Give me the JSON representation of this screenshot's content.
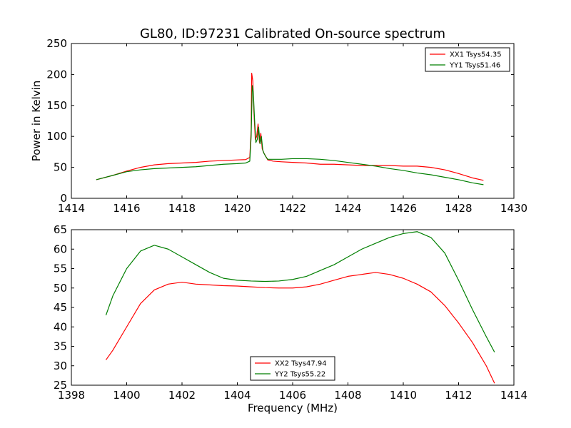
{
  "title": "GL80, ID:97231 Calibrated On-source spectrum",
  "colors": {
    "red": "#ff0000",
    "green": "#007f00"
  },
  "chart_data": [
    {
      "type": "line",
      "title": "GL80, ID:97231 Calibrated On-source spectrum",
      "xlabel": "",
      "ylabel": "Power in Kelvin",
      "xlim": [
        1414,
        1430
      ],
      "ylim": [
        0,
        250
      ],
      "xticks": [
        1414,
        1416,
        1418,
        1420,
        1422,
        1424,
        1426,
        1428,
        1430
      ],
      "yticks": [
        0,
        50,
        100,
        150,
        200,
        250
      ],
      "legend_position": "top-right",
      "grid": false,
      "series": [
        {
          "name": "XX1 Tsys54.35",
          "color": "#ff0000",
          "x": [
            1414.9,
            1415.5,
            1416.0,
            1416.5,
            1417.0,
            1417.5,
            1418.0,
            1418.5,
            1419.0,
            1419.5,
            1420.0,
            1420.3,
            1420.45,
            1420.5,
            1420.52,
            1420.56,
            1420.6,
            1420.65,
            1420.7,
            1420.75,
            1420.8,
            1420.85,
            1420.9,
            1420.95,
            1421.0,
            1421.1,
            1421.3,
            1421.6,
            1422.0,
            1422.5,
            1423.0,
            1423.5,
            1424.0,
            1424.5,
            1425.0,
            1425.5,
            1426.0,
            1426.5,
            1427.0,
            1427.5,
            1428.0,
            1428.5,
            1428.9
          ],
          "y": [
            30,
            37,
            44,
            50,
            54,
            56,
            57,
            58,
            60,
            61,
            62,
            62.5,
            66,
            110,
            202,
            190,
            140,
            95,
            100,
            120,
            90,
            105,
            80,
            74,
            70,
            62,
            60,
            59,
            58,
            57,
            55,
            55,
            54,
            53,
            53,
            53,
            52,
            52,
            50,
            46,
            40,
            33,
            29
          ]
        },
        {
          "name": "YY1 Tsys51.46",
          "color": "#007f00",
          "x": [
            1414.9,
            1415.5,
            1416.0,
            1416.5,
            1417.0,
            1417.5,
            1418.0,
            1418.5,
            1419.0,
            1419.5,
            1420.0,
            1420.3,
            1420.45,
            1420.5,
            1420.54,
            1420.58,
            1420.62,
            1420.67,
            1420.72,
            1420.77,
            1420.82,
            1420.87,
            1420.92,
            1420.97,
            1421.02,
            1421.1,
            1421.3,
            1421.6,
            1422.0,
            1422.5,
            1423.0,
            1423.5,
            1424.0,
            1424.5,
            1425.0,
            1425.5,
            1426.0,
            1426.5,
            1427.0,
            1427.5,
            1428.0,
            1428.5,
            1428.9
          ],
          "y": [
            30,
            37,
            43,
            46,
            48,
            49,
            50,
            51,
            53,
            55,
            56,
            57,
            60,
            100,
            182,
            170,
            130,
            90,
            95,
            115,
            88,
            100,
            78,
            72,
            68,
            63,
            63,
            63,
            64,
            64,
            63,
            61,
            58,
            55,
            52,
            48,
            45,
            41,
            38,
            34,
            30,
            25,
            22
          ]
        }
      ]
    },
    {
      "type": "line",
      "title": "",
      "xlabel": "Frequency (MHz)",
      "ylabel": "",
      "xlim": [
        1398,
        1414
      ],
      "ylim": [
        25,
        65
      ],
      "xticks": [
        1398,
        1400,
        1402,
        1404,
        1406,
        1408,
        1410,
        1412,
        1414
      ],
      "yticks": [
        25,
        30,
        35,
        40,
        45,
        50,
        55,
        60,
        65
      ],
      "legend_position": "bottom-center",
      "grid": false,
      "series": [
        {
          "name": "XX2 Tsys47.94",
          "color": "#ff0000",
          "x": [
            1399.25,
            1399.5,
            1400.0,
            1400.5,
            1401.0,
            1401.5,
            1402.0,
            1402.5,
            1403.0,
            1403.5,
            1404.0,
            1404.5,
            1405.0,
            1405.5,
            1406.0,
            1406.5,
            1407.0,
            1407.5,
            1408.0,
            1408.5,
            1409.0,
            1409.5,
            1410.0,
            1410.5,
            1411.0,
            1411.5,
            1412.0,
            1412.5,
            1413.0,
            1413.3
          ],
          "y": [
            31.5,
            34,
            40,
            46,
            49.5,
            51,
            51.5,
            51,
            50.8,
            50.6,
            50.5,
            50.3,
            50.1,
            50,
            50,
            50.3,
            51,
            52,
            53,
            53.5,
            54,
            53.5,
            52.5,
            51,
            49,
            45.5,
            41,
            36,
            30,
            25.5
          ]
        },
        {
          "name": "YY2 Tsys55.22",
          "color": "#007f00",
          "x": [
            1399.25,
            1399.5,
            1400.0,
            1400.5,
            1401.0,
            1401.5,
            1402.0,
            1402.5,
            1403.0,
            1403.5,
            1404.0,
            1404.5,
            1405.0,
            1405.5,
            1406.0,
            1406.5,
            1407.0,
            1407.5,
            1408.0,
            1408.5,
            1409.0,
            1409.5,
            1410.0,
            1410.5,
            1411.0,
            1411.5,
            1412.0,
            1412.5,
            1413.0,
            1413.3
          ],
          "y": [
            43,
            48,
            55,
            59.5,
            61,
            60,
            58,
            56,
            54,
            52.5,
            52,
            51.8,
            51.7,
            51.8,
            52.2,
            53,
            54.5,
            56,
            58,
            60,
            61.5,
            63,
            64,
            64.5,
            63,
            59,
            52,
            44.5,
            37.5,
            33.5
          ]
        }
      ]
    }
  ]
}
